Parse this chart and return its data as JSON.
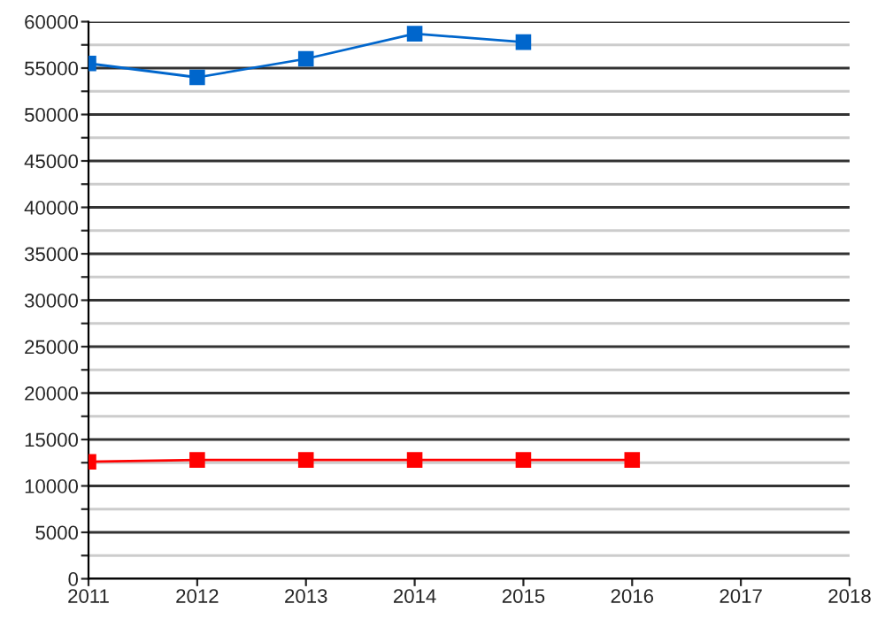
{
  "chart_data": {
    "type": "line",
    "x": [
      2011,
      2012,
      2013,
      2014,
      2015,
      2016
    ],
    "series": [
      {
        "color": "#0066cc",
        "values": [
          55500,
          54000,
          56000,
          58700,
          57800,
          null
        ]
      },
      {
        "color": "#ff0000",
        "values": [
          12600,
          12800,
          12800,
          12800,
          12800,
          12800
        ]
      }
    ],
    "xlim": [
      2011,
      2018
    ],
    "xticks": [
      2011,
      2012,
      2013,
      2014,
      2015,
      2016,
      2017,
      {
        "value": 2018,
        "label": "2018"
      }
    ],
    "ylim": [
      0,
      60000
    ],
    "yticks": [
      0,
      {
        "value": 2500,
        "label": null
      },
      5000,
      {
        "value": 7500,
        "label": null
      },
      10000,
      {
        "value": 12500,
        "label": null
      },
      15000,
      {
        "value": 17500,
        "label": null
      },
      20000,
      {
        "value": 22500,
        "label": null
      },
      25000,
      {
        "value": 27500,
        "label": null
      },
      30000,
      {
        "value": 32500,
        "label": null
      },
      35000,
      {
        "value": 37500,
        "label": null
      },
      40000,
      {
        "value": 42500,
        "label": null
      },
      45000,
      {
        "value": 47500,
        "label": null
      },
      50000,
      {
        "value": 52500,
        "label": null
      },
      55000,
      {
        "value": 57500,
        "label": null
      },
      60000
    ],
    "grid": "y",
    "marker": "square",
    "line_style": "solid"
  }
}
